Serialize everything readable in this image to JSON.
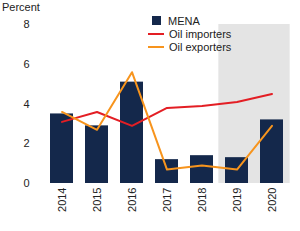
{
  "chart_data": {
    "type": "bar",
    "ylabel": "Percent",
    "categories": [
      "2014",
      "2015",
      "2016",
      "2017",
      "2018",
      "2019",
      "2020"
    ],
    "series": [
      {
        "name": "MENA",
        "type": "bar",
        "color": "#14284b",
        "values": [
          3.5,
          2.9,
          5.1,
          1.2,
          1.4,
          1.3,
          3.2
        ]
      },
      {
        "name": "Oil importers",
        "type": "line",
        "color": "#e31e24",
        "values": [
          3.1,
          3.6,
          2.9,
          3.8,
          3.9,
          4.1,
          4.5
        ]
      },
      {
        "name": "Oil exporters",
        "type": "line",
        "color": "#f7941d",
        "values": [
          3.6,
          2.7,
          5.6,
          0.7,
          0.9,
          0.7,
          2.9
        ]
      }
    ],
    "shaded_categories": [
      "2019",
      "2020"
    ],
    "ylim": [
      0,
      8
    ],
    "yticks": [
      0,
      2,
      4,
      6,
      8
    ],
    "grid": false,
    "legend": "top"
  }
}
